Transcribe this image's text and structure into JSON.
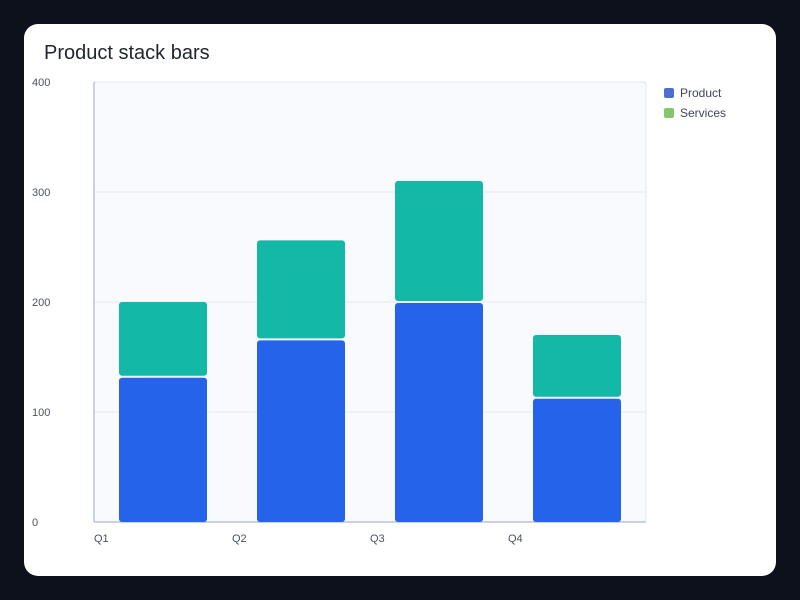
{
  "chart_data": {
    "type": "bar",
    "stacked": true,
    "title": "Product stack bars",
    "categories": [
      "Q1",
      "Q2",
      "Q3",
      "Q4"
    ],
    "series": [
      {
        "name": "Product",
        "values": [
          132,
          166,
          200,
          113
        ],
        "color": "#2563eb"
      },
      {
        "name": "Services",
        "values": [
          68,
          90,
          110,
          57
        ],
        "color": "#14b8a6"
      }
    ],
    "legend_colors": [
      "#4a6fd0",
      "#86c66b"
    ],
    "ylim": [
      0,
      400
    ],
    "yticks": [
      0,
      100,
      200,
      300,
      400
    ],
    "grid": true,
    "legend_position": "right"
  }
}
